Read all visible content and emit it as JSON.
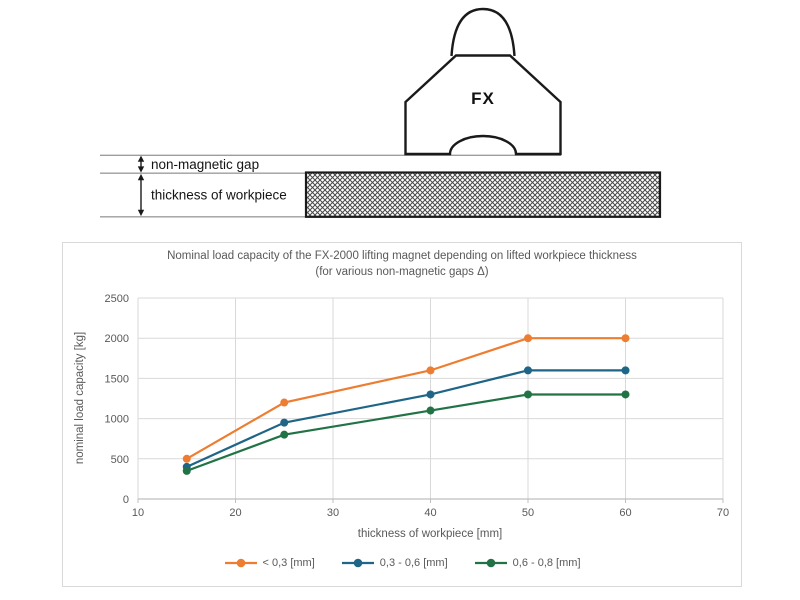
{
  "colors": {
    "series_orange": "#ED7D31",
    "series_blue": "#1F6587",
    "series_green": "#217346",
    "chart_text": "#595959",
    "grid": "#D9D9D9",
    "axis": "#BFBFBF",
    "diagram_line": "#9D9D9D",
    "ink": "#1A1A1A"
  },
  "diagram": {
    "magnet_label": "FX",
    "gap_label": "non-magnetic gap",
    "thickness_label": "thickness of workpiece"
  },
  "chart_data": {
    "type": "line",
    "title": "Nominal load capacity of the FX-2000 lifting magnet depending on lifted workpiece thickness",
    "subtitle": "(for various non-magnetic gaps Δ)",
    "xlabel": "thickness of workpiece [mm]",
    "ylabel": "nominal load capacity [kg]",
    "x": [
      15,
      25,
      40,
      50,
      60
    ],
    "series": [
      {
        "name": "< 0,3 [mm]",
        "color": "#ED7D31",
        "values": [
          500,
          1200,
          1600,
          2000,
          2000
        ]
      },
      {
        "name": "0,3 - 0,6 [mm]",
        "color": "#1F6587",
        "values": [
          400,
          950,
          1300,
          1600,
          1600
        ]
      },
      {
        "name": "0,6 - 0,8 [mm]",
        "color": "#217346",
        "values": [
          350,
          800,
          1100,
          1300,
          1300
        ]
      }
    ],
    "xlim": [
      10,
      70
    ],
    "ylim": [
      0,
      2500
    ],
    "xticks": [
      10,
      20,
      30,
      40,
      50,
      60,
      70
    ],
    "yticks": [
      0,
      500,
      1000,
      1500,
      2000,
      2500
    ],
    "grid": true,
    "legend_position": "bottom"
  }
}
